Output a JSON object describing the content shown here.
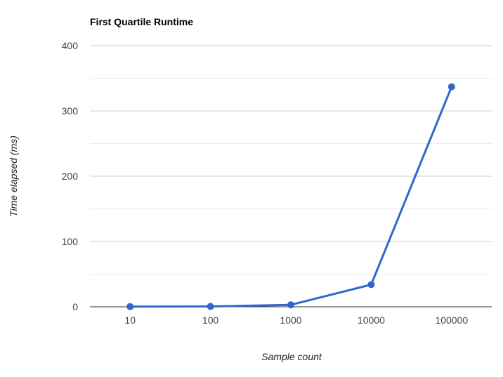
{
  "chart_data": {
    "type": "line",
    "title": "First Quartile Runtime",
    "xlabel": "Sample count",
    "ylabel": "Time elapsed (ms)",
    "categories": [
      "10",
      "100",
      "1000",
      "10000",
      "100000"
    ],
    "series": [
      {
        "values": [
          0.3,
          0.5,
          3,
          34,
          337
        ],
        "color": "#3366cc"
      }
    ],
    "ylim": [
      0,
      400
    ],
    "yticks": [
      "0",
      "100",
      "200",
      "300",
      "400"
    ],
    "minor_gridlines": [
      50,
      150,
      250,
      350
    ],
    "grid": true,
    "legend": "none"
  }
}
